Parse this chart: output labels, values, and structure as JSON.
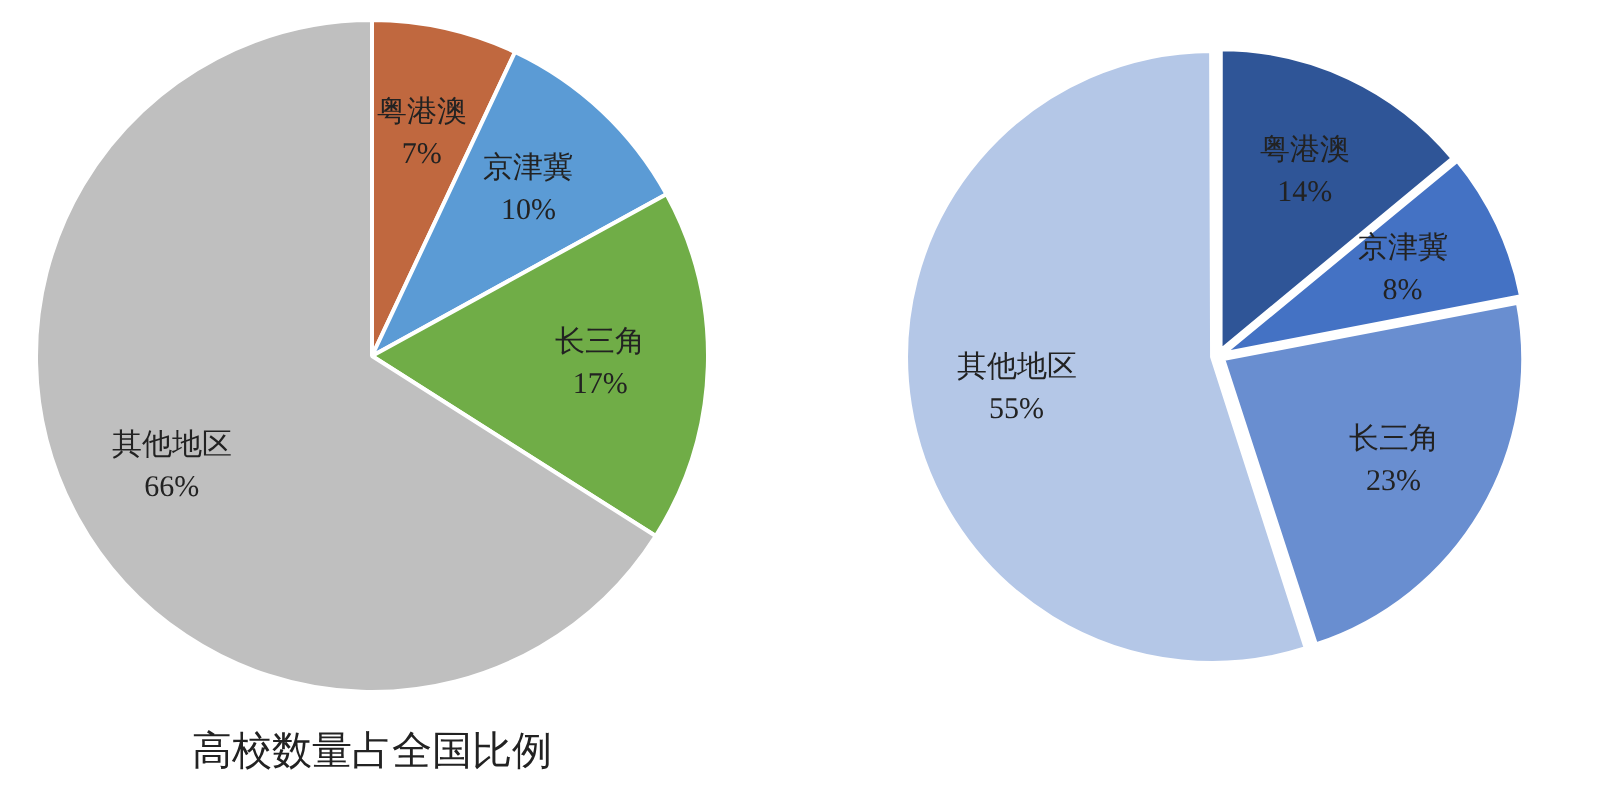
{
  "chart_data": [
    {
      "type": "pie",
      "title": "高校数量占全国比例",
      "categories": [
        "粤港澳",
        "京津冀",
        "长三角",
        "其他地区"
      ],
      "values": [
        7,
        10,
        17,
        66
      ],
      "value_labels": [
        "7%",
        "10%",
        "17%",
        "66%"
      ],
      "colors": [
        "#c0683f",
        "#5b9bd5",
        "#70ad47",
        "#bfbfbf"
      ],
      "legend": false
    },
    {
      "type": "pie",
      "categories": [
        "粤港澳",
        "京津冀",
        "长三角",
        "其他地区"
      ],
      "values": [
        14,
        8,
        23,
        55
      ],
      "value_labels": [
        "14%",
        "8%",
        "23%",
        "55%"
      ],
      "colors": [
        "#2f5597",
        "#4472c4",
        "#698ed0",
        "#b4c7e7"
      ],
      "legend": false
    }
  ]
}
